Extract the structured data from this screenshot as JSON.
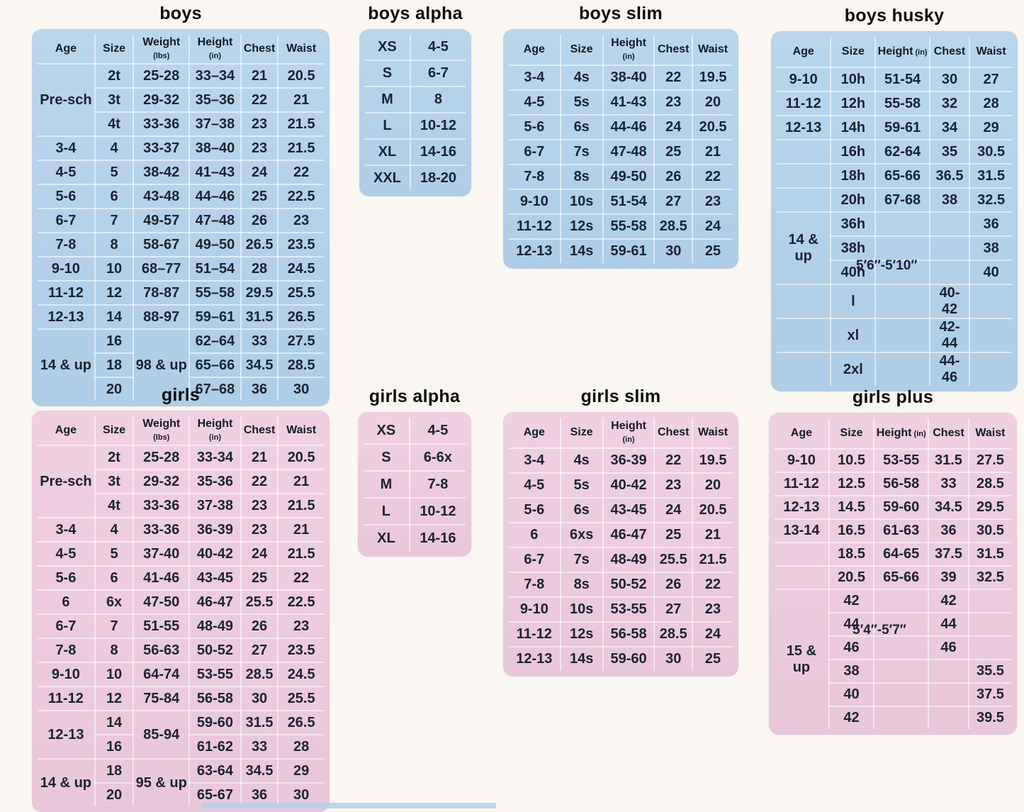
{
  "colors": {
    "boys_panel": "#b2d1ea",
    "girls_panel": "#edcbde",
    "ink": "#1a2332",
    "page_background": "#faf7f2"
  },
  "tables": {
    "boys": {
      "title": "boys",
      "headers": [
        {
          "label": "Age"
        },
        {
          "label": "Size"
        },
        {
          "label": "Weight",
          "unit": "(lbs)"
        },
        {
          "label": "Height",
          "unit": "(in)"
        },
        {
          "label": "Chest"
        },
        {
          "label": "Waist"
        }
      ],
      "rows": [
        [
          {
            "t": "Pre-sch",
            "rs": 3
          },
          "2t",
          "25-28",
          "33–34",
          "21",
          "20.5"
        ],
        [
          "3t",
          "29-32",
          "35–36",
          "22",
          "21"
        ],
        [
          "4t",
          "33-36",
          "37–38",
          "23",
          "21.5"
        ],
        [
          "3-4",
          "4",
          "33-37",
          "38–40",
          "23",
          "21.5"
        ],
        [
          "4-5",
          "5",
          "38-42",
          "41–43",
          "24",
          "22"
        ],
        [
          "5-6",
          "6",
          "43-48",
          "44–46",
          "25",
          "22.5"
        ],
        [
          "6-7",
          "7",
          "49-57",
          "47–48",
          "26",
          "23"
        ],
        [
          "7-8",
          "8",
          "58-67",
          "49–50",
          "26.5",
          "23.5"
        ],
        [
          "9-10",
          "10",
          "68–77",
          "51–54",
          "28",
          "24.5"
        ],
        [
          "11-12",
          "12",
          "78-87",
          "55–58",
          "29.5",
          "25.5"
        ],
        [
          "12-13",
          "14",
          "88-97",
          "59–61",
          "31.5",
          "26.5"
        ],
        [
          {
            "t": "14 & up",
            "rs": 3
          },
          "16",
          {
            "t": "98 & up",
            "rs": 3
          },
          "62–64",
          "33",
          "27.5"
        ],
        [
          "18",
          "65–66",
          "34.5",
          "28.5"
        ],
        [
          "20",
          "67–68",
          "36",
          "30"
        ]
      ]
    },
    "boys_alpha": {
      "title": "boys alpha",
      "rows": [
        [
          "XS",
          "4-5"
        ],
        [
          "S",
          "6-7"
        ],
        [
          "M",
          "8"
        ],
        [
          "L",
          "10-12"
        ],
        [
          "XL",
          "14-16"
        ],
        [
          "XXL",
          "18-20"
        ]
      ]
    },
    "boys_slim": {
      "title": "boys slim",
      "headers": [
        {
          "label": "Age"
        },
        {
          "label": "Size"
        },
        {
          "label": "Height",
          "unit": "(in)"
        },
        {
          "label": "Chest"
        },
        {
          "label": "Waist"
        }
      ],
      "rows": [
        [
          "3-4",
          "4s",
          "38-40",
          "22",
          "19.5"
        ],
        [
          "4-5",
          "5s",
          "41-43",
          "23",
          "20"
        ],
        [
          "5-6",
          "6s",
          "44-46",
          "24",
          "20.5"
        ],
        [
          "6-7",
          "7s",
          "47-48",
          "25",
          "21"
        ],
        [
          "7-8",
          "8s",
          "49-50",
          "26",
          "22"
        ],
        [
          "9-10",
          "10s",
          "51-54",
          "27",
          "23"
        ],
        [
          "11-12",
          "12s",
          "55-58",
          "28.5",
          "24"
        ],
        [
          "12-13",
          "14s",
          "59-61",
          "30",
          "25"
        ]
      ]
    },
    "boys_husky": {
      "title": "boys husky",
      "height_note": "5′6″-5′10″",
      "headers": [
        {
          "label": "Age"
        },
        {
          "label": "Size"
        },
        {
          "label": "Height",
          "unit": "(in)"
        },
        {
          "label": "Chest"
        },
        {
          "label": "Waist"
        }
      ],
      "rows": [
        [
          "9-10",
          "10h",
          "51-54",
          "30",
          "27"
        ],
        [
          "11-12",
          "12h",
          "55-58",
          "32",
          "28"
        ],
        [
          "12-13",
          "14h",
          "59-61",
          "34",
          "29"
        ],
        [
          "",
          "16h",
          "62-64",
          "35",
          "30.5"
        ],
        [
          "",
          "18h",
          "65-66",
          "36.5",
          "31.5"
        ],
        [
          "",
          "20h",
          "67-68",
          "38",
          "32.5"
        ],
        [
          {
            "t": "14 & up",
            "rs": 3
          },
          "36h",
          "",
          "",
          "36"
        ],
        [
          "38h",
          "",
          "",
          "38"
        ],
        [
          "40h",
          "",
          "",
          "40"
        ],
        [
          "",
          "l",
          "",
          "40-42",
          ""
        ],
        [
          "",
          "xl",
          "",
          "42-44",
          ""
        ],
        [
          "",
          "2xl",
          "",
          "44-46",
          ""
        ]
      ]
    },
    "girls": {
      "title": "girls",
      "headers": [
        {
          "label": "Age"
        },
        {
          "label": "Size"
        },
        {
          "label": "Weight",
          "unit": "(lbs)"
        },
        {
          "label": "Height",
          "unit": "(in)"
        },
        {
          "label": "Chest"
        },
        {
          "label": "Waist"
        }
      ],
      "rows": [
        [
          {
            "t": "Pre-sch",
            "rs": 3
          },
          "2t",
          "25-28",
          "33-34",
          "21",
          "20.5"
        ],
        [
          "3t",
          "29-32",
          "35-36",
          "22",
          "21"
        ],
        [
          "4t",
          "33-36",
          "37-38",
          "23",
          "21.5"
        ],
        [
          "3-4",
          "4",
          "33-36",
          "36-39",
          "23",
          "21"
        ],
        [
          "4-5",
          "5",
          "37-40",
          "40-42",
          "24",
          "21.5"
        ],
        [
          "5-6",
          "6",
          "41-46",
          "43-45",
          "25",
          "22"
        ],
        [
          "6",
          "6x",
          "47-50",
          "46-47",
          "25.5",
          "22.5"
        ],
        [
          "6-7",
          "7",
          "51-55",
          "48-49",
          "26",
          "23"
        ],
        [
          "7-8",
          "8",
          "56-63",
          "50-52",
          "27",
          "23.5"
        ],
        [
          "9-10",
          "10",
          "64-74",
          "53-55",
          "28.5",
          "24.5"
        ],
        [
          "11-12",
          "12",
          "75-84",
          "56-58",
          "30",
          "25.5"
        ],
        [
          {
            "t": "12-13",
            "rs": 2
          },
          "14",
          {
            "t": "85-94",
            "rs": 2
          },
          "59-60",
          "31.5",
          "26.5"
        ],
        [
          "16",
          "61-62",
          "33",
          "28"
        ],
        [
          {
            "t": "14 & up",
            "rs": 2
          },
          "18",
          {
            "t": "95 & up",
            "rs": 2
          },
          "63-64",
          "34.5",
          "29"
        ],
        [
          "20",
          "65-67",
          "36",
          "30"
        ]
      ]
    },
    "girls_alpha": {
      "title": "girls alpha",
      "rows": [
        [
          "XS",
          "4-5"
        ],
        [
          "S",
          "6-6x"
        ],
        [
          "M",
          "7-8"
        ],
        [
          "L",
          "10-12"
        ],
        [
          "XL",
          "14-16"
        ]
      ]
    },
    "girls_slim": {
      "title": "girls slim",
      "headers": [
        {
          "label": "Age"
        },
        {
          "label": "Size"
        },
        {
          "label": "Height",
          "unit": "(in)"
        },
        {
          "label": "Chest"
        },
        {
          "label": "Waist"
        }
      ],
      "rows": [
        [
          "3-4",
          "4s",
          "36-39",
          "22",
          "19.5"
        ],
        [
          "4-5",
          "5s",
          "40-42",
          "23",
          "20"
        ],
        [
          "5-6",
          "6s",
          "43-45",
          "24",
          "20.5"
        ],
        [
          "6",
          "6xs",
          "46-47",
          "25",
          "21"
        ],
        [
          "6-7",
          "7s",
          "48-49",
          "25.5",
          "21.5"
        ],
        [
          "7-8",
          "8s",
          "50-52",
          "26",
          "22"
        ],
        [
          "9-10",
          "10s",
          "53-55",
          "27",
          "23"
        ],
        [
          "11-12",
          "12s",
          "56-58",
          "28.5",
          "24"
        ],
        [
          "12-13",
          "14s",
          "59-60",
          "30",
          "25"
        ]
      ]
    },
    "girls_plus": {
      "title": "girls plus",
      "height_note": "5′4″-5′7″",
      "headers": [
        {
          "label": "Age"
        },
        {
          "label": "Size"
        },
        {
          "label": "Height",
          "unit": "(in)"
        },
        {
          "label": "Chest"
        },
        {
          "label": "Waist"
        }
      ],
      "rows": [
        [
          "9-10",
          "10.5",
          "53-55",
          "31.5",
          "27.5"
        ],
        [
          "11-12",
          "12.5",
          "56-58",
          "33",
          "28.5"
        ],
        [
          "12-13",
          "14.5",
          "59-60",
          "34.5",
          "29.5"
        ],
        [
          "13-14",
          "16.5",
          "61-63",
          "36",
          "30.5"
        ],
        [
          "",
          "18.5",
          "64-65",
          "37.5",
          "31.5"
        ],
        [
          "",
          "20.5",
          "65-66",
          "39",
          "32.5"
        ],
        [
          {
            "t": "15 & up",
            "rs": 6
          },
          "42",
          "",
          "42",
          ""
        ],
        [
          "44",
          "",
          "44",
          ""
        ],
        [
          "46",
          "",
          "46",
          ""
        ],
        [
          "38",
          "",
          "",
          "35.5"
        ],
        [
          "40",
          "",
          "",
          "37.5"
        ],
        [
          "42",
          "",
          "",
          "39.5"
        ]
      ]
    }
  }
}
